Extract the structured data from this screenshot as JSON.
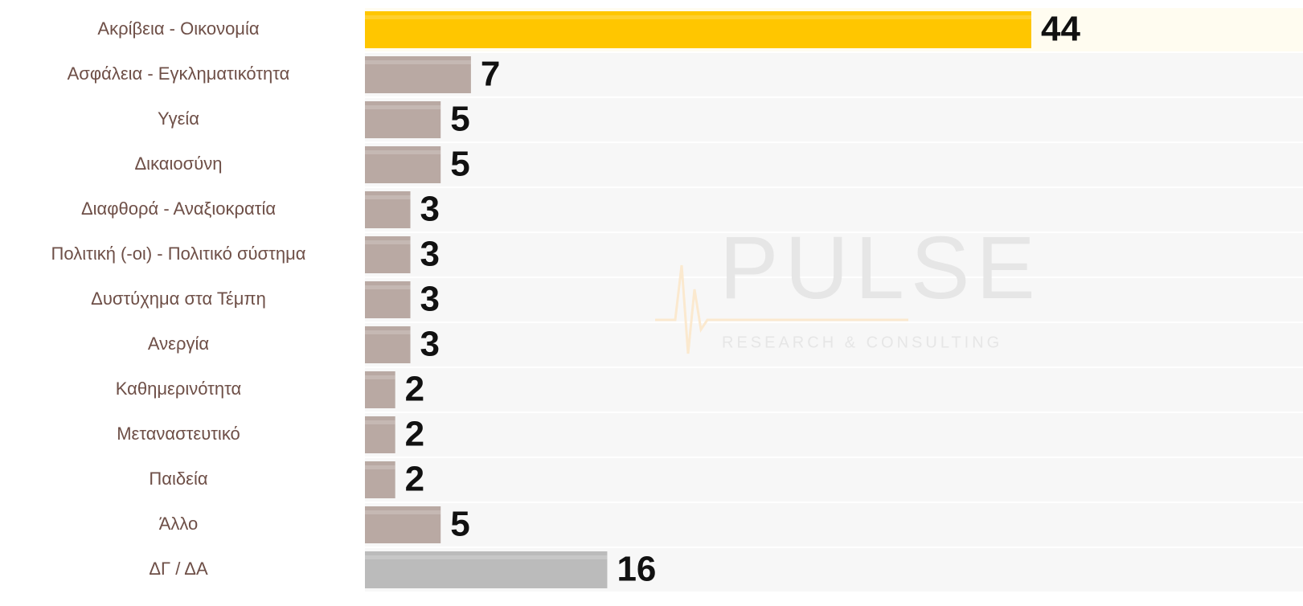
{
  "chart_data": {
    "type": "bar",
    "orientation": "horizontal",
    "categories": [
      "Ακρίβεια - Οικονομία",
      "Ασφάλεια - Εγκληματικότητα",
      "Υγεία",
      "Δικαιοσύνη",
      "Διαφθορά  - Αναξιοκρατία",
      "Πολιτική (-οι) - Πολιτικό σύστημα",
      "Δυστύχημα στα Τέμπη",
      "Ανεργία",
      "Καθημερινότητα",
      "Μεταναστευτικό",
      "Παιδεία",
      "Άλλο",
      "ΔΓ / ΔΑ"
    ],
    "values": [
      44,
      7,
      5,
      5,
      3,
      3,
      3,
      3,
      2,
      2,
      2,
      5,
      16
    ],
    "colors": [
      "#ffc600",
      "#b9a9a3",
      "#b9a9a3",
      "#b9a9a3",
      "#b9a9a3",
      "#b9a9a3",
      "#b9a9a3",
      "#b9a9a3",
      "#b9a9a3",
      "#b9a9a3",
      "#b9a9a3",
      "#b9a9a3",
      "#bbbbbb"
    ],
    "watermark": {
      "title": "PULSE",
      "subtitle": "RESEARCH & CONSULTING"
    }
  }
}
